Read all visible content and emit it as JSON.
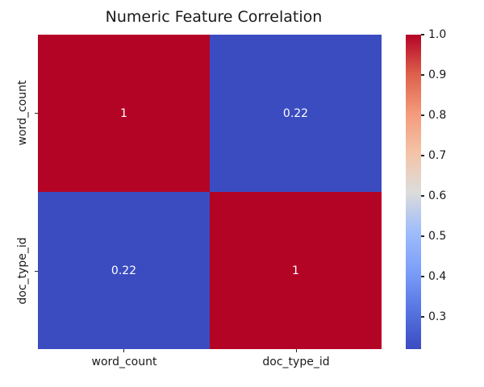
{
  "chart_data": {
    "type": "heatmap",
    "title": "Numeric Feature Correlation",
    "categories": [
      "word_count",
      "doc_type_id"
    ],
    "x_tick_labels": [
      "word_count",
      "doc_type_id"
    ],
    "y_tick_labels": [
      "word_count",
      "doc_type_id"
    ],
    "matrix": [
      [
        1.0,
        0.22
      ],
      [
        0.22,
        1.0
      ]
    ],
    "cell_labels": [
      [
        "1",
        "0.22"
      ],
      [
        "0.22",
        "1"
      ]
    ],
    "colormap": "coolwarm",
    "vmin": 0.22,
    "vmax": 1.0,
    "grid": false,
    "legend_position": "right-colorbar",
    "colorbar_tick_labels": [
      "1.0",
      "0.9",
      "0.8",
      "0.7",
      "0.6",
      "0.5",
      "0.4",
      "0.3"
    ],
    "annotation_color": "#ffffff",
    "cell_colors": {
      "high": "#b40426",
      "low": "#3b4cc0"
    }
  }
}
